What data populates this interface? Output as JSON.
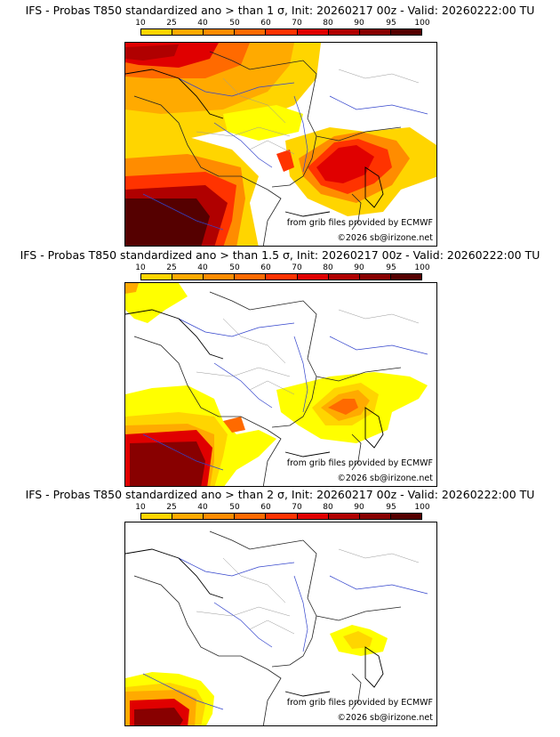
{
  "colorbar": {
    "ticks": [
      "10",
      "25",
      "40",
      "50",
      "60",
      "70",
      "80",
      "90",
      "95",
      "100"
    ],
    "colors": [
      "#ffff00",
      "#ffd500",
      "#ffaa00",
      "#ff8c00",
      "#ff6a00",
      "#ff3300",
      "#e00000",
      "#b00000",
      "#880000",
      "#550000"
    ]
  },
  "panels": [
    {
      "title": "IFS - Probas T850  standardized ano > than 1 σ, Init: 20260217 00z - Valid: 20260222:00 TU",
      "source": "from grib files provided by ECMWF",
      "copyright": "©2026 sb@irizone.net"
    },
    {
      "title": "IFS - Probas T850  standardized ano > than 1.5 σ, Init: 20260217 00z - Valid: 20260222:00 TU",
      "source": "from grib files provided by ECMWF",
      "copyright": "©2026 sb@irizone.net"
    },
    {
      "title": "IFS - Probas T850  standardized ano > than 2 σ, Init: 20260217 00z - Valid: 20260222:00 TU",
      "source": "from grib files provided by ECMWF",
      "copyright": "©2026 sb@irizone.net"
    }
  ]
}
